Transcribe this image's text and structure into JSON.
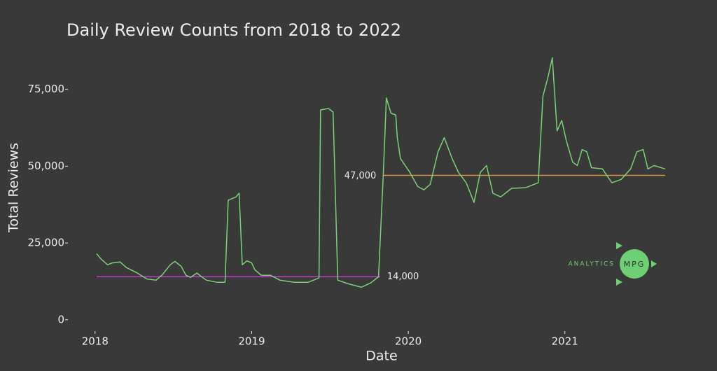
{
  "chart_data": {
    "type": "line",
    "title": "Daily Review Counts from 2018 to 2022",
    "x_label": "Date",
    "y_label": "Total Reviews",
    "xlim": [
      2017.84,
      2021.73
    ],
    "xticks": [
      2018,
      2019,
      2020,
      2021
    ],
    "ylim": [
      -3000,
      87000
    ],
    "yticks": [
      0,
      {
        "value": 25000,
        "label": "25,000"
      },
      {
        "value": 50000,
        "label": "50,000"
      },
      {
        "value": 75000,
        "label": "75,000"
      }
    ],
    "series": [
      {
        "color": "#7ccf7a",
        "x": [
          2018.01,
          2018.04,
          2018.08,
          2018.11,
          2018.16,
          2018.2,
          2018.27,
          2018.33,
          2018.39,
          2018.43,
          2018.48,
          2018.51,
          2018.55,
          2018.58,
          2018.61,
          2018.65,
          2018.68,
          2018.71,
          2018.78,
          2018.83,
          2018.85,
          2018.9,
          2018.92,
          2018.94,
          2018.97,
          2019.0,
          2019.02,
          2019.06,
          2019.12,
          2019.18,
          2019.27,
          2019.36,
          2019.43,
          2019.44,
          2019.49,
          2019.52,
          2019.55,
          2019.61,
          2019.7,
          2019.76,
          2019.81,
          2019.84,
          2019.86,
          2019.89,
          2019.92,
          2019.93,
          2019.95,
          2020.01,
          2020.06,
          2020.1,
          2020.14,
          2020.19,
          2020.23,
          2020.28,
          2020.32,
          2020.37,
          2020.42,
          2020.46,
          2020.5,
          2020.54,
          2020.59,
          2020.66,
          2020.75,
          2020.83,
          2020.86,
          2020.89,
          2020.92,
          2020.95,
          2020.98,
          2021.01,
          2021.05,
          2021.08,
          2021.11,
          2021.14,
          2021.17,
          2021.24,
          2021.3,
          2021.36,
          2021.42,
          2021.46,
          2021.5,
          2021.53,
          2021.57,
          2021.64
        ],
        "values": [
          21500,
          19700,
          17900,
          18500,
          18800,
          17000,
          15200,
          13300,
          12900,
          14700,
          17900,
          19000,
          17400,
          14500,
          13800,
          15200,
          14000,
          12900,
          12200,
          12200,
          38900,
          40000,
          41200,
          17900,
          19200,
          18500,
          16300,
          14500,
          14500,
          12900,
          12200,
          12200,
          13600,
          68300,
          68800,
          67600,
          12900,
          11800,
          10600,
          12000,
          14000,
          46800,
          72200,
          67200,
          66700,
          59300,
          52500,
          48000,
          43400,
          42300,
          44100,
          54700,
          59300,
          52500,
          48000,
          44600,
          38200,
          48000,
          50200,
          41200,
          40000,
          42800,
          43000,
          44600,
          72800,
          78500,
          85300,
          61500,
          64900,
          58100,
          51300,
          50200,
          55400,
          54700,
          49500,
          49100,
          44600,
          45700,
          49100,
          54700,
          55400,
          49100,
          50200,
          49100
        ]
      }
    ],
    "reference_lines": [
      {
        "value": 14000,
        "label": "14,000",
        "color": "#c23fc2",
        "x": [
          2018.01,
          2019.82
        ],
        "label_at": "end"
      },
      {
        "value": 47000,
        "label": "47,000",
        "color": "#d9973a",
        "x": [
          2019.84,
          2021.64
        ],
        "label_at": "start"
      }
    ],
    "logo": {
      "word": "ANALYTICS",
      "badge": "MPG"
    }
  }
}
